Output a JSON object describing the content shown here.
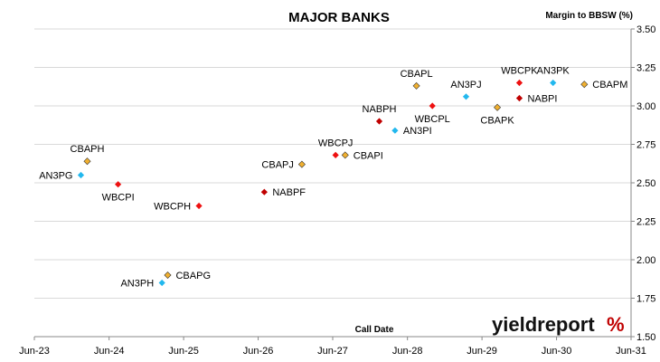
{
  "chart_data": {
    "type": "scatter",
    "title": "MAJOR BANKS",
    "ylabel": "Margin to BBSW (%)",
    "xlabel": "Call Date",
    "y_axis_position": "right",
    "ylim": [
      1.5,
      3.5
    ],
    "yticks": [
      "1.50",
      "1.75",
      "2.00",
      "2.25",
      "2.50",
      "2.75",
      "3.00",
      "3.25",
      "3.50"
    ],
    "xlim": [
      "2023-06-01",
      "2031-06-01"
    ],
    "xticks": [
      {
        "label": "Jun-23",
        "date": "2023-06-01"
      },
      {
        "label": "Jun-24",
        "date": "2024-06-01"
      },
      {
        "label": "Jun-25",
        "date": "2025-06-01"
      },
      {
        "label": "Jun-26",
        "date": "2026-06-01"
      },
      {
        "label": "Jun-27",
        "date": "2027-06-01"
      },
      {
        "label": "Jun-28",
        "date": "2028-06-01"
      },
      {
        "label": "Jun-29",
        "date": "2029-06-01"
      },
      {
        "label": "Jun-30",
        "date": "2030-06-01"
      },
      {
        "label": "Jun-31",
        "date": "2031-06-01"
      }
    ],
    "grid": "horizontal",
    "colors": {
      "CBA": "#f0b030",
      "WBC": "#ee1111",
      "ANZ": "#22b8ee",
      "NAB": "#c00000"
    },
    "points": [
      {
        "label": "CBAPH",
        "bank": "CBA",
        "date": "2024-02-15",
        "y": 2.64,
        "label_pos": "above"
      },
      {
        "label": "AN3PG",
        "bank": "ANZ",
        "date": "2024-01-15",
        "y": 2.55,
        "label_pos": "left"
      },
      {
        "label": "WBCPI",
        "bank": "WBC",
        "date": "2024-07-15",
        "y": 2.49,
        "label_pos": "below"
      },
      {
        "label": "WBCPH",
        "bank": "WBC",
        "date": "2025-08-15",
        "y": 2.35,
        "label_pos": "left"
      },
      {
        "label": "CBAPG",
        "bank": "CBA",
        "date": "2025-03-15",
        "y": 1.9,
        "label_pos": "right"
      },
      {
        "label": "AN3PH",
        "bank": "ANZ",
        "date": "2025-02-15",
        "y": 1.85,
        "label_pos": "left"
      },
      {
        "label": "NABPF",
        "bank": "NAB",
        "date": "2026-07-01",
        "y": 2.44,
        "label_pos": "right"
      },
      {
        "label": "CBAPJ",
        "bank": "CBA",
        "date": "2027-01-01",
        "y": 2.62,
        "label_pos": "left"
      },
      {
        "label": "WBCPJ",
        "bank": "WBC",
        "date": "2027-06-15",
        "y": 2.68,
        "label_pos": "above"
      },
      {
        "label": "CBAPI",
        "bank": "CBA",
        "date": "2027-08-01",
        "y": 2.68,
        "label_pos": "right"
      },
      {
        "label": "NABPH",
        "bank": "NAB",
        "date": "2028-01-15",
        "y": 2.9,
        "label_pos": "above"
      },
      {
        "label": "AN3PI",
        "bank": "ANZ",
        "date": "2028-04-01",
        "y": 2.84,
        "label_pos": "right"
      },
      {
        "label": "CBAPL",
        "bank": "CBA",
        "date": "2028-07-15",
        "y": 3.13,
        "label_pos": "above"
      },
      {
        "label": "WBCPL",
        "bank": "WBC",
        "date": "2028-10-01",
        "y": 3.0,
        "label_pos": "below"
      },
      {
        "label": "AN3PJ",
        "bank": "ANZ",
        "date": "2029-03-15",
        "y": 3.06,
        "label_pos": "above"
      },
      {
        "label": "CBAPK",
        "bank": "CBA",
        "date": "2029-08-15",
        "y": 2.99,
        "label_pos": "below"
      },
      {
        "label": "NABPI",
        "bank": "NAB",
        "date": "2029-12-01",
        "y": 3.05,
        "label_pos": "right"
      },
      {
        "label": "WBCPK",
        "bank": "WBC",
        "date": "2029-12-01",
        "y": 3.15,
        "label_pos": "above"
      },
      {
        "label": "AN3PK",
        "bank": "ANZ",
        "date": "2030-05-15",
        "y": 3.15,
        "label_pos": "above"
      },
      {
        "label": "CBAPM",
        "bank": "CBA",
        "date": "2030-10-15",
        "y": 3.14,
        "label_pos": "right"
      }
    ]
  },
  "logo": {
    "text": "yieldreport",
    "symbol": "%"
  }
}
